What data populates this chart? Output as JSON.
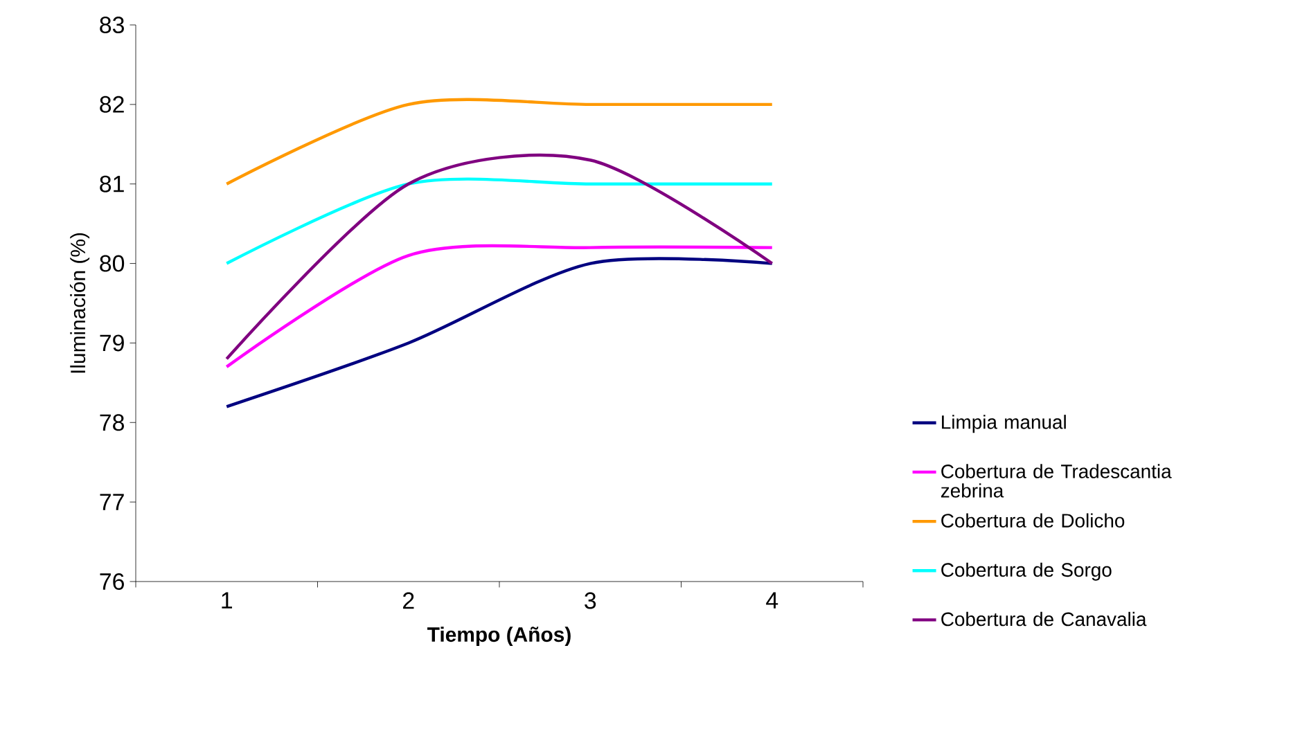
{
  "chart_data": {
    "type": "line",
    "xlabel": "Tiempo (Años)",
    "ylabel": "Iluminación (%)",
    "categories": [
      "1",
      "2",
      "3",
      "4"
    ],
    "series": [
      {
        "name": "Limpia manual",
        "color": "#000080",
        "values": [
          78.2,
          79.0,
          80.0,
          80.0
        ]
      },
      {
        "name": "Cobertura de Tradescantia zebrina",
        "color": "#ff00ff",
        "values": [
          78.7,
          80.1,
          80.2,
          80.2
        ]
      },
      {
        "name": "Cobertura de Dolicho",
        "color": "#ff9900",
        "values": [
          81.0,
          82.0,
          82.0,
          82.0
        ]
      },
      {
        "name": "Cobertura de Sorgo",
        "color": "#00ffff",
        "values": [
          80.0,
          81.0,
          81.0,
          81.0
        ]
      },
      {
        "name": "Cobertura de Canavalia",
        "color": "#800080",
        "values": [
          78.8,
          81.0,
          81.3,
          80.0
        ]
      }
    ],
    "ylim": [
      76,
      83
    ],
    "yticks": [
      76,
      77,
      78,
      79,
      80,
      81,
      82,
      83
    ],
    "grid": false,
    "legend": "right",
    "marker": "none",
    "line_style": "solid"
  }
}
